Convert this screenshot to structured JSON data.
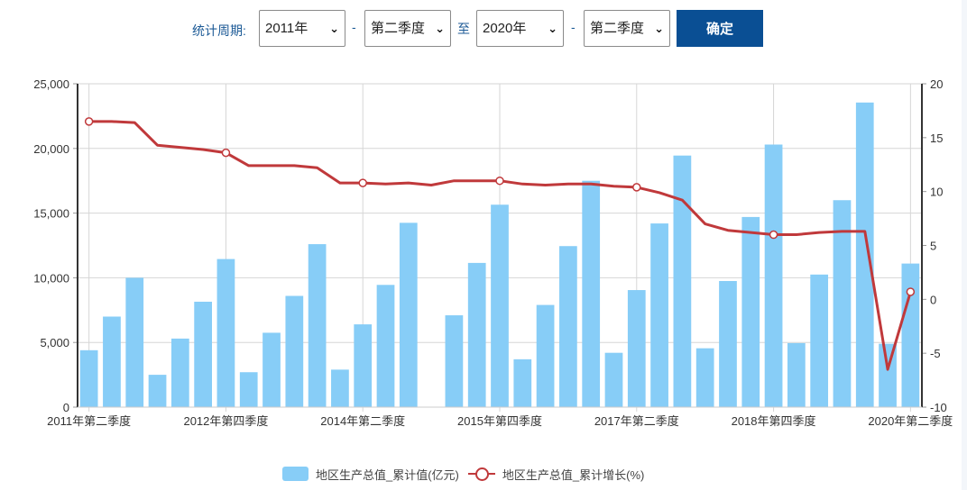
{
  "filter": {
    "label": "统计周期:",
    "start_year": "2011年",
    "start_quarter": "第二季度",
    "to_label": "至",
    "end_year": "2020年",
    "end_quarter": "第二季度",
    "dash": "-",
    "chevron": "❯",
    "confirm_label": "确定"
  },
  "legend": {
    "bar_label": "地区生产总值_累计值(亿元)",
    "line_label": "地区生产总值_累计增长(%)"
  },
  "colors": {
    "bar": "#87cdf7",
    "line": "#c0393b",
    "button": "#0a4f94",
    "accent_text": "#1c5a96"
  },
  "chart_data": {
    "type": "bar+line",
    "title": "",
    "xlabel": "",
    "ylabel_left": "地区生产总值_累计值(亿元)",
    "ylabel_right": "地区生产总值_累计增长(%)",
    "ylim_left": [
      0,
      25000
    ],
    "ylim_right": [
      -10,
      20
    ],
    "yticks_left": [
      "0",
      "5,000",
      "10,000",
      "15,000",
      "20,000",
      "25,000"
    ],
    "yticks_right": [
      "-10",
      "-5",
      "0",
      "5",
      "10",
      "15",
      "20"
    ],
    "x_tick_labels": [
      {
        "index": 0,
        "label": "2011年第二季度"
      },
      {
        "index": 6,
        "label": "2012年第四季度"
      },
      {
        "index": 12,
        "label": "2014年第二季度"
      },
      {
        "index": 18,
        "label": "2015年第四季度"
      },
      {
        "index": 24,
        "label": "2017年第二季度"
      },
      {
        "index": 30,
        "label": "2018年第四季度"
      },
      {
        "index": 36,
        "label": "2020年第二季度"
      }
    ],
    "grid": true,
    "legend_position": "bottom",
    "categories": [
      "2011Q2",
      "2011Q3",
      "2011Q4",
      "2012Q1",
      "2012Q2",
      "2012Q3",
      "2012Q4",
      "2013Q1",
      "2013Q2",
      "2013Q3",
      "2013Q4",
      "2014Q1",
      "2014Q2",
      "2014Q3",
      "2014Q4",
      "2015Q1",
      "2015Q2",
      "2015Q3",
      "2015Q4",
      "2016Q1",
      "2016Q2",
      "2016Q3",
      "2016Q4",
      "2017Q1",
      "2017Q2",
      "2017Q3",
      "2017Q4",
      "2018Q1",
      "2018Q2",
      "2018Q3",
      "2018Q4",
      "2019Q1",
      "2019Q2",
      "2019Q3",
      "2019Q4",
      "2020Q1",
      "2020Q2"
    ],
    "series": [
      {
        "name": "地区生产总值_累计值(亿元)",
        "type": "bar",
        "axis": "left",
        "values": [
          4400,
          7000,
          10000,
          2500,
          5300,
          8150,
          11450,
          2700,
          5750,
          8600,
          12600,
          2900,
          6400,
          9450,
          14250,
          null,
          7100,
          11150,
          15650,
          3700,
          7900,
          12450,
          17500,
          4200,
          9050,
          14200,
          19450,
          4550,
          9750,
          14700,
          20300,
          4950,
          10250,
          16000,
          23550,
          4900,
          11100
        ]
      },
      {
        "name": "地区生产总值_累计增长(%)",
        "type": "line",
        "axis": "right",
        "values": [
          16.5,
          16.5,
          16.4,
          14.3,
          14.1,
          13.9,
          13.6,
          12.4,
          12.4,
          12.4,
          12.2,
          10.8,
          10.8,
          10.7,
          10.8,
          10.6,
          11.0,
          11.0,
          11.0,
          10.7,
          10.6,
          10.7,
          10.7,
          10.5,
          10.4,
          9.9,
          9.2,
          7.0,
          6.4,
          6.2,
          6.0,
          6.0,
          6.2,
          6.3,
          6.3,
          -6.5,
          0.7
        ],
        "markers_at": [
          0,
          6,
          12,
          18,
          24,
          30,
          36
        ]
      }
    ]
  }
}
